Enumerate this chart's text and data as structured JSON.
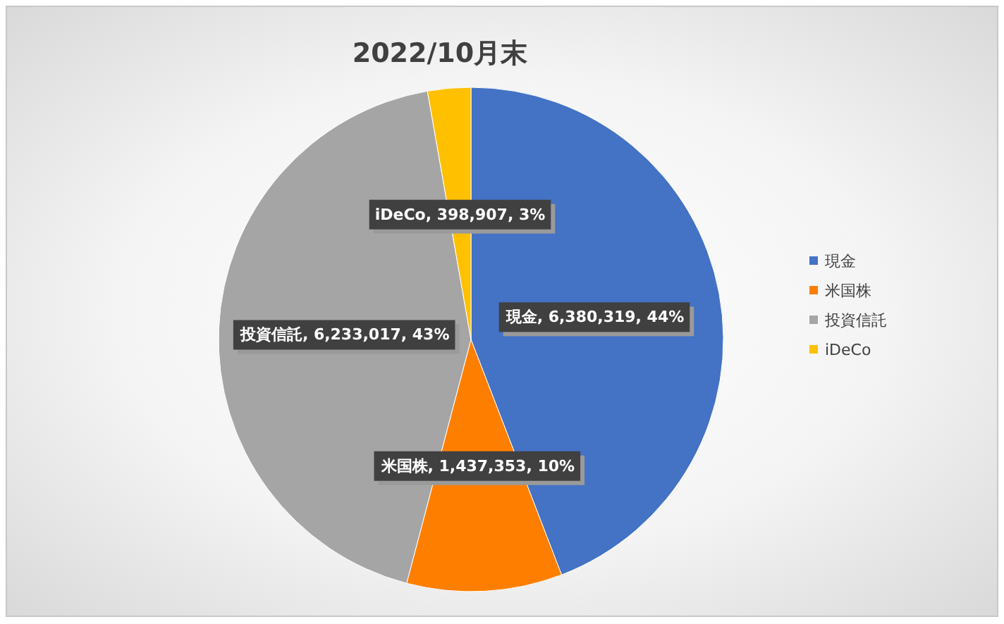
{
  "chart_data": {
    "type": "pie",
    "title": "2022/10月末",
    "categories": [
      "現金",
      "米国株",
      "投資信託",
      "iDeCo"
    ],
    "values": [
      6380319,
      1437353,
      6233017,
      398907
    ],
    "colors": [
      "#4472c4",
      "#fe7f00",
      "#a5a5a5",
      "#ffc000"
    ],
    "value_labels": [
      "現金, 6,380,319, 44%",
      "米国株, 1,437,353, 10%",
      "投資信託, 6,233,017, 43%",
      "iDeCo, 398,907, 3%"
    ],
    "legend": "right"
  }
}
